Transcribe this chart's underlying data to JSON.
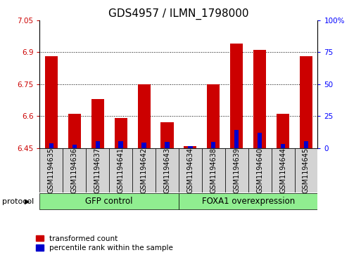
{
  "title": "GDS4957 / ILMN_1798000",
  "samples": [
    "GSM1194635",
    "GSM1194636",
    "GSM1194637",
    "GSM1194641",
    "GSM1194642",
    "GSM1194643",
    "GSM1194634",
    "GSM1194638",
    "GSM1194639",
    "GSM1194640",
    "GSM1194644",
    "GSM1194645"
  ],
  "red_values": [
    6.88,
    6.61,
    6.68,
    6.59,
    6.75,
    6.57,
    6.46,
    6.75,
    6.94,
    6.91,
    6.61,
    6.88
  ],
  "blue_values": [
    3.5,
    2.5,
    5.0,
    5.0,
    4.0,
    4.5,
    1.5,
    4.5,
    14.0,
    12.0,
    3.0,
    5.0
  ],
  "ymin": 6.45,
  "ymax": 7.05,
  "y2min": 0,
  "y2max": 100,
  "yticks": [
    6.45,
    6.6,
    6.75,
    6.9,
    7.05
  ],
  "y2ticks": [
    0,
    25,
    50,
    75,
    100
  ],
  "ytick_labels": [
    "6.45",
    "6.6",
    "6.75",
    "6.9",
    "7.05"
  ],
  "y2tick_labels": [
    "0",
    "25",
    "50",
    "75",
    "100%"
  ],
  "red_color": "#cc0000",
  "blue_color": "#0000cc",
  "bar_width": 0.55,
  "group1_label": "GFP control",
  "group2_label": "FOXA1 overexpression",
  "group1_indices": [
    0,
    1,
    2,
    3,
    4,
    5
  ],
  "group2_indices": [
    6,
    7,
    8,
    9,
    10,
    11
  ],
  "group_color": "#90ee90",
  "protocol_label": "protocol",
  "legend_red": "transformed count",
  "legend_blue": "percentile rank within the sample",
  "grid_color": "#000000",
  "bg_color": "#ffffff",
  "cell_bg_color": "#d3d3d3",
  "title_fontsize": 11,
  "tick_fontsize": 7.5,
  "label_fontsize": 8.5
}
